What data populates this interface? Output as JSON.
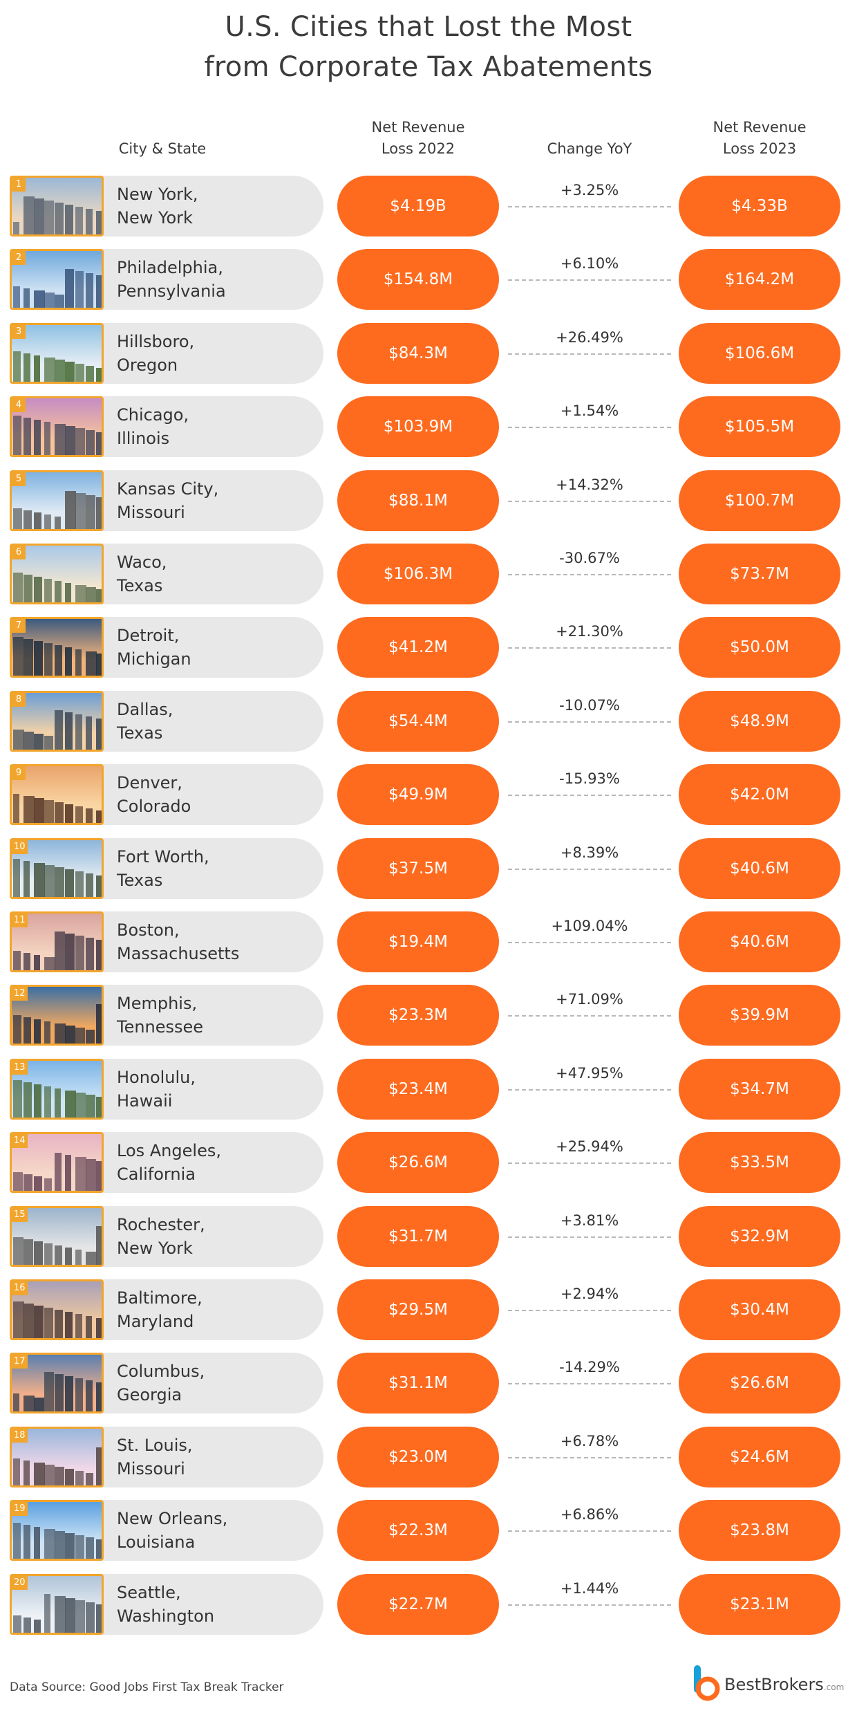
{
  "title_line1": "U.S. Cities that Lost the Most",
  "title_line2": "from Corporate Tax Abatements",
  "headers": {
    "city": "City & State",
    "loss2022_l1": "Net Revenue",
    "loss2022_l2": "Loss 2022",
    "change": "Change YoY",
    "loss2023_l1": "Net Revenue",
    "loss2023_l2": "Loss 2023"
  },
  "source": "Data Source: Good Jobs First Tax Break Tracker",
  "brand": {
    "name": "BestBrokers",
    "suffix": ".com",
    "color_primary": "#fe6b1f",
    "color_secondary": "#1aa0d8"
  },
  "colors": {
    "accent": "#fe6b1f",
    "rank_badge": "#f2a52c",
    "city_pill": "#e8e8e8",
    "dash": "#b9b9b9"
  },
  "chart_data": {
    "type": "table",
    "columns": [
      "City & State",
      "Net Revenue Loss 2022",
      "Change YoY",
      "Net Revenue Loss 2023"
    ],
    "rows": [
      {
        "rank": "1",
        "city": "New York,",
        "state": "New York",
        "loss_2022": "$4.19B",
        "change": "+3.25%",
        "loss_2023": "$4.33B"
      },
      {
        "rank": "2",
        "city": "Philadelphia,",
        "state": "Pennsylvania",
        "loss_2022": "$154.8M",
        "change": "+6.10%",
        "loss_2023": "$164.2M"
      },
      {
        "rank": "3",
        "city": "Hillsboro,",
        "state": "Oregon",
        "loss_2022": "$84.3M",
        "change": "+26.49%",
        "loss_2023": "$106.6M"
      },
      {
        "rank": "4",
        "city": "Chicago,",
        "state": "Illinois",
        "loss_2022": "$103.9M",
        "change": "+1.54%",
        "loss_2023": "$105.5M"
      },
      {
        "rank": "5",
        "city": "Kansas City,",
        "state": "Missouri",
        "loss_2022": "$88.1M",
        "change": "+14.32%",
        "loss_2023": "$100.7M"
      },
      {
        "rank": "6",
        "city": "Waco,",
        "state": "Texas",
        "loss_2022": "$106.3M",
        "change": "-30.67%",
        "loss_2023": "$73.7M"
      },
      {
        "rank": "7",
        "city": "Detroit,",
        "state": "Michigan",
        "loss_2022": "$41.2M",
        "change": "+21.30%",
        "loss_2023": "$50.0M"
      },
      {
        "rank": "8",
        "city": "Dallas,",
        "state": "Texas",
        "loss_2022": "$54.4M",
        "change": "-10.07%",
        "loss_2023": "$48.9M"
      },
      {
        "rank": "9",
        "city": "Denver,",
        "state": "Colorado",
        "loss_2022": "$49.9M",
        "change": "-15.93%",
        "loss_2023": "$42.0M"
      },
      {
        "rank": "10",
        "city": "Fort Worth,",
        "state": "Texas",
        "loss_2022": "$37.5M",
        "change": "+8.39%",
        "loss_2023": "$40.6M"
      },
      {
        "rank": "11",
        "city": "Boston,",
        "state": "Massachusetts",
        "loss_2022": "$19.4M",
        "change": "+109.04%",
        "loss_2023": "$40.6M"
      },
      {
        "rank": "12",
        "city": "Memphis,",
        "state": "Tennessee",
        "loss_2022": "$23.3M",
        "change": "+71.09%",
        "loss_2023": "$39.9M"
      },
      {
        "rank": "13",
        "city": "Honolulu,",
        "state": "Hawaii",
        "loss_2022": "$23.4M",
        "change": "+47.95%",
        "loss_2023": "$34.7M"
      },
      {
        "rank": "14",
        "city": "Los Angeles,",
        "state": "California",
        "loss_2022": "$26.6M",
        "change": "+25.94%",
        "loss_2023": "$33.5M"
      },
      {
        "rank": "15",
        "city": "Rochester,",
        "state": "New York",
        "loss_2022": "$31.7M",
        "change": "+3.81%",
        "loss_2023": "$32.9M"
      },
      {
        "rank": "16",
        "city": "Baltimore,",
        "state": "Maryland",
        "loss_2022": "$29.5M",
        "change": "+2.94%",
        "loss_2023": "$30.4M"
      },
      {
        "rank": "17",
        "city": "Columbus,",
        "state": "Georgia",
        "loss_2022": "$31.1M",
        "change": "-14.29%",
        "loss_2023": "$26.6M"
      },
      {
        "rank": "18",
        "city": "St. Louis,",
        "state": "Missouri",
        "loss_2022": "$23.0M",
        "change": "+6.78%",
        "loss_2023": "$24.6M"
      },
      {
        "rank": "19",
        "city": "New Orleans,",
        "state": "Louisiana",
        "loss_2022": "$22.3M",
        "change": "+6.86%",
        "loss_2023": "$23.8M"
      },
      {
        "rank": "20",
        "city": "Seattle,",
        "state": "Washington",
        "loss_2022": "$22.7M",
        "change": "+1.44%",
        "loss_2023": "$23.1M"
      }
    ]
  }
}
